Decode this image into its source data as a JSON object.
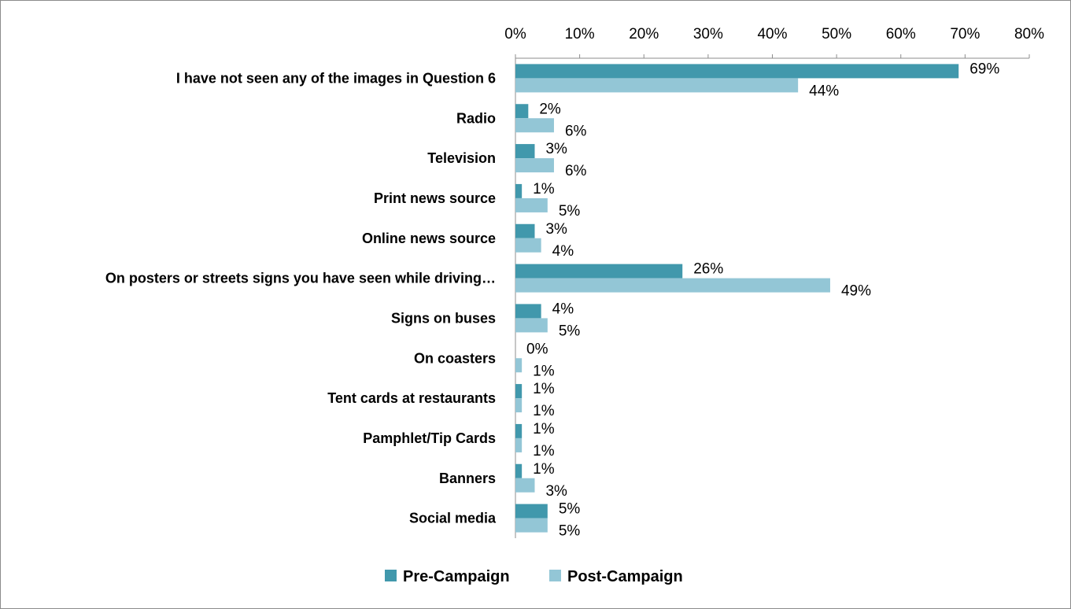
{
  "chart_data": {
    "type": "bar",
    "orientation": "horizontal",
    "categories": [
      "I have not seen any of the images in Question 6",
      "Radio",
      "Television",
      "Print news source",
      "Online news source",
      "On posters or streets signs you have seen while driving…",
      "Signs on buses",
      "On coasters",
      "Tent cards at restaurants",
      "Pamphlet/Tip Cards",
      "Banners",
      "Social media"
    ],
    "series": [
      {
        "name": "Pre-Campaign",
        "color": "#4198AC",
        "values": [
          69,
          2,
          3,
          1,
          3,
          26,
          4,
          0,
          1,
          1,
          1,
          5
        ],
        "labels": [
          "69%",
          "2%",
          "3%",
          "1%",
          "3%",
          "26%",
          "4%",
          "0%",
          "1%",
          "1%",
          "1%",
          "5%"
        ]
      },
      {
        "name": "Post-Campaign",
        "color": "#93C6D6",
        "values": [
          44,
          6,
          6,
          5,
          4,
          49,
          5,
          1,
          1,
          1,
          3,
          5
        ],
        "labels": [
          "44%",
          "6%",
          "6%",
          "5%",
          "4%",
          "49%",
          "5%",
          "1%",
          "1%",
          "1%",
          "3%",
          "5%"
        ]
      }
    ],
    "xlim": [
      0,
      80
    ],
    "xticks": [
      0,
      10,
      20,
      30,
      40,
      50,
      60,
      70,
      80
    ],
    "xtick_labels": [
      "0%",
      "10%",
      "20%",
      "30%",
      "40%",
      "50%",
      "60%",
      "70%",
      "80%"
    ],
    "x_axis_position": "top",
    "grid": false,
    "legend_position": "bottom",
    "title": "",
    "xlabel": "",
    "ylabel": ""
  }
}
